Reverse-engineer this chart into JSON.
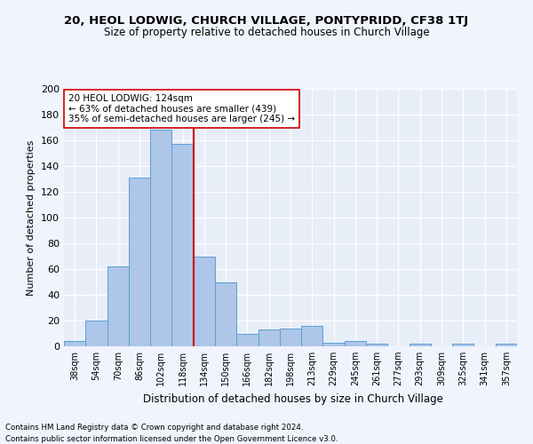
{
  "title": "20, HEOL LODWIG, CHURCH VILLAGE, PONTYPRIDD, CF38 1TJ",
  "subtitle": "Size of property relative to detached houses in Church Village",
  "xlabel": "Distribution of detached houses by size in Church Village",
  "ylabel": "Number of detached properties",
  "bar_labels": [
    "38sqm",
    "54sqm",
    "70sqm",
    "86sqm",
    "102sqm",
    "118sqm",
    "134sqm",
    "150sqm",
    "166sqm",
    "182sqm",
    "198sqm",
    "213sqm",
    "229sqm",
    "245sqm",
    "261sqm",
    "277sqm",
    "293sqm",
    "309sqm",
    "325sqm",
    "341sqm",
    "357sqm"
  ],
  "bar_values": [
    4,
    20,
    62,
    131,
    168,
    157,
    70,
    50,
    10,
    13,
    14,
    16,
    3,
    4,
    2,
    0,
    2,
    0,
    2,
    0,
    2
  ],
  "bar_color": "#aec6e8",
  "bar_edge_color": "#5a9fd4",
  "vline_color": "#cc0000",
  "annotation_text": "20 HEOL LODWIG: 124sqm\n← 63% of detached houses are smaller (439)\n35% of semi-detached houses are larger (245) →",
  "annotation_box_color": "#ffffff",
  "annotation_box_edge": "#cc0000",
  "ylim": [
    0,
    200
  ],
  "yticks": [
    0,
    20,
    40,
    60,
    80,
    100,
    120,
    140,
    160,
    180,
    200
  ],
  "background_color": "#e8eef8",
  "grid_color": "#ffffff",
  "fig_background": "#f0f4fc",
  "footer_line1": "Contains HM Land Registry data © Crown copyright and database right 2024.",
  "footer_line2": "Contains public sector information licensed under the Open Government Licence v3.0."
}
